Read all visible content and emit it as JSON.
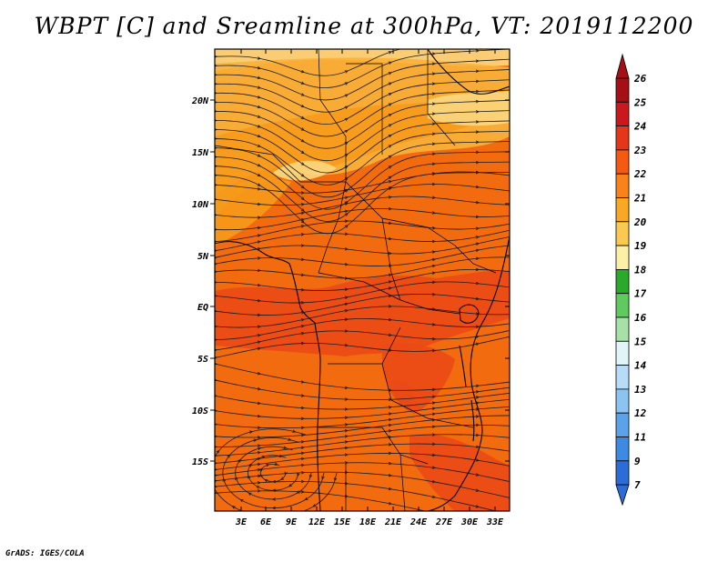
{
  "title": "WBPT [C] and Sreamline at 300hPa, VT: 2019112200",
  "credit": "GrADS: IGES/COLA",
  "map": {
    "lat_labels": [
      "20N",
      "15N",
      "10N",
      "5N",
      "EQ",
      "5S",
      "10S",
      "15S"
    ],
    "lon_labels": [
      "3E",
      "6E",
      "9E",
      "12E",
      "15E",
      "18E",
      "21E",
      "24E",
      "27E",
      "30E",
      "33E"
    ],
    "field_colors": {
      "c19_20": "#fbd77f",
      "c20_21": "#f8b33a",
      "c21_22": "#f69a1a",
      "c22_23": "#f26b0e",
      "c23_24": "#ea4a16"
    },
    "streamline_color": "#1a1a1a",
    "coastline_color": "#000000"
  },
  "colorbar": {
    "labels": [
      "26",
      "25",
      "24",
      "23",
      "22",
      "21",
      "20",
      "19",
      "18",
      "17",
      "16",
      "15",
      "14",
      "13",
      "12",
      "11",
      "9",
      "7"
    ],
    "colors": [
      "#a50f15",
      "#cb181d",
      "#e6361a",
      "#f45a10",
      "#f9821a",
      "#f9a825",
      "#fbc94f",
      "#fdf0a6",
      "#2aa92a",
      "#5fcb5f",
      "#a7e1a7",
      "#e1f5f8",
      "#b6dcf7",
      "#8cc3f2",
      "#5aa3ea",
      "#3c8ae2",
      "#2c6cd8"
    ],
    "top_arrow_color": "#a50f15",
    "bottom_arrow_color": "#2c6cd8"
  }
}
